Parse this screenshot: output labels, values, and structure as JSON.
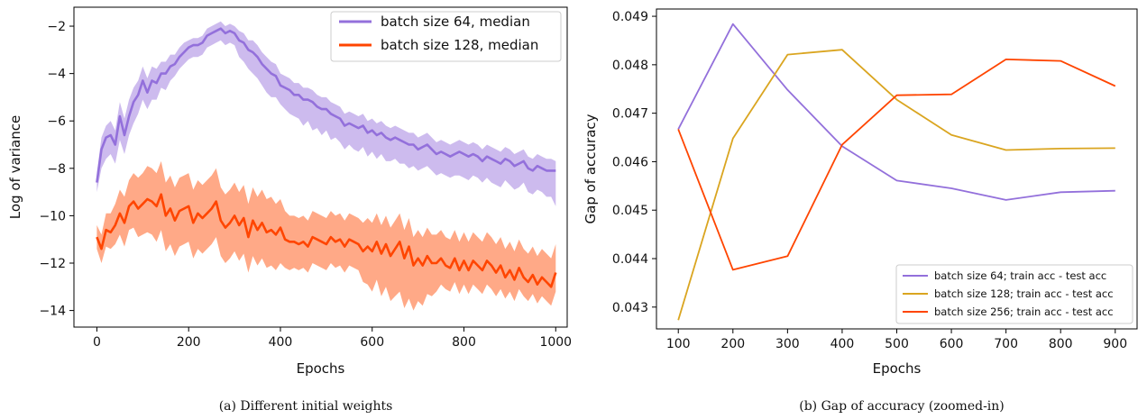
{
  "chart_data": [
    {
      "type": "line",
      "caption": "(a) Different initial weights",
      "xlabel": "Epochs",
      "ylabel": "Log of variance",
      "xlim": [
        -50,
        1025
      ],
      "ylim": [
        -14.7,
        -1.2
      ],
      "xticks": [
        0,
        200,
        400,
        600,
        800,
        1000
      ],
      "yticks": [
        -14,
        -12,
        -10,
        -8,
        -6,
        -4,
        -2
      ],
      "legend_position": "top-right",
      "x": [
        0,
        10,
        20,
        30,
        40,
        50,
        60,
        70,
        80,
        90,
        100,
        110,
        120,
        130,
        140,
        150,
        160,
        170,
        180,
        190,
        200,
        210,
        220,
        230,
        240,
        250,
        260,
        270,
        280,
        290,
        300,
        310,
        320,
        330,
        340,
        350,
        360,
        370,
        380,
        390,
        400,
        410,
        420,
        430,
        440,
        450,
        460,
        470,
        480,
        490,
        500,
        510,
        520,
        530,
        540,
        550,
        560,
        570,
        580,
        590,
        600,
        610,
        620,
        630,
        640,
        650,
        660,
        670,
        680,
        690,
        700,
        710,
        720,
        730,
        740,
        750,
        760,
        770,
        780,
        790,
        800,
        810,
        820,
        830,
        840,
        850,
        860,
        870,
        880,
        890,
        900,
        910,
        920,
        930,
        940,
        950,
        960,
        970,
        980,
        990,
        1000
      ],
      "series": [
        {
          "name": "batch size 64, median",
          "color": "#9370DB",
          "band_color": "#C8B4EC",
          "values": [
            -8.6,
            -7.2,
            -6.7,
            -6.6,
            -7.0,
            -5.8,
            -6.6,
            -5.8,
            -5.2,
            -4.9,
            -4.3,
            -4.8,
            -4.3,
            -4.4,
            -4.0,
            -4.0,
            -3.7,
            -3.6,
            -3.3,
            -3.1,
            -2.9,
            -2.8,
            -2.8,
            -2.7,
            -2.4,
            -2.3,
            -2.2,
            -2.1,
            -2.3,
            -2.2,
            -2.3,
            -2.6,
            -2.7,
            -3.0,
            -3.1,
            -3.3,
            -3.6,
            -3.8,
            -4.0,
            -4.1,
            -4.5,
            -4.6,
            -4.7,
            -4.9,
            -4.9,
            -5.1,
            -5.1,
            -5.2,
            -5.4,
            -5.5,
            -5.5,
            -5.7,
            -5.8,
            -5.9,
            -6.2,
            -6.1,
            -6.2,
            -6.3,
            -6.2,
            -6.5,
            -6.4,
            -6.6,
            -6.5,
            -6.7,
            -6.8,
            -6.7,
            -6.8,
            -6.9,
            -7.0,
            -7.0,
            -7.2,
            -7.1,
            -7.0,
            -7.2,
            -7.4,
            -7.3,
            -7.4,
            -7.5,
            -7.4,
            -7.3,
            -7.4,
            -7.5,
            -7.4,
            -7.5,
            -7.7,
            -7.5,
            -7.6,
            -7.7,
            -7.8,
            -7.6,
            -7.7,
            -7.9,
            -7.8,
            -7.7,
            -8.0,
            -8.1,
            -7.9,
            -8.0,
            -8.1,
            -8.1,
            -8.1
          ],
          "band_low": [
            -9.0,
            -8.0,
            -7.6,
            -7.4,
            -7.8,
            -6.8,
            -7.4,
            -6.6,
            -6.1,
            -5.7,
            -5.1,
            -5.5,
            -5.1,
            -5.1,
            -4.6,
            -4.7,
            -4.3,
            -4.1,
            -3.8,
            -3.6,
            -3.4,
            -3.3,
            -3.3,
            -3.2,
            -2.9,
            -2.8,
            -2.7,
            -2.6,
            -2.8,
            -2.7,
            -2.8,
            -3.3,
            -3.5,
            -3.8,
            -4.0,
            -4.2,
            -4.5,
            -4.8,
            -5.0,
            -5.0,
            -5.3,
            -5.5,
            -5.7,
            -5.8,
            -5.9,
            -6.2,
            -6.0,
            -6.4,
            -6.3,
            -6.6,
            -6.4,
            -6.8,
            -6.7,
            -6.9,
            -7.2,
            -7.0,
            -7.2,
            -7.3,
            -7.1,
            -7.5,
            -7.3,
            -7.6,
            -7.4,
            -7.7,
            -7.7,
            -7.6,
            -7.8,
            -7.8,
            -8.0,
            -7.9,
            -8.1,
            -8.0,
            -7.9,
            -8.1,
            -8.3,
            -8.2,
            -8.3,
            -8.4,
            -8.3,
            -8.3,
            -8.4,
            -8.5,
            -8.3,
            -8.4,
            -8.6,
            -8.4,
            -8.6,
            -8.7,
            -8.8,
            -8.5,
            -8.7,
            -8.9,
            -8.8,
            -8.6,
            -9.0,
            -9.1,
            -8.9,
            -9.0,
            -9.2,
            -9.2,
            -9.6
          ],
          "band_high": [
            -8.2,
            -6.7,
            -6.2,
            -6.0,
            -6.4,
            -5.2,
            -5.9,
            -5.1,
            -4.6,
            -4.3,
            -3.7,
            -4.2,
            -3.7,
            -3.8,
            -3.5,
            -3.5,
            -3.2,
            -3.2,
            -2.9,
            -2.7,
            -2.6,
            -2.5,
            -2.5,
            -2.4,
            -2.1,
            -2.0,
            -1.9,
            -1.8,
            -2.0,
            -1.9,
            -2.0,
            -2.2,
            -2.3,
            -2.6,
            -2.6,
            -2.8,
            -3.1,
            -3.3,
            -3.5,
            -3.6,
            -4.0,
            -4.1,
            -4.2,
            -4.4,
            -4.4,
            -4.6,
            -4.6,
            -4.7,
            -4.9,
            -5.0,
            -5.0,
            -5.2,
            -5.3,
            -5.4,
            -5.7,
            -5.6,
            -5.7,
            -5.8,
            -5.7,
            -6.0,
            -5.9,
            -6.1,
            -6.0,
            -6.2,
            -6.3,
            -6.2,
            -6.3,
            -6.4,
            -6.5,
            -6.5,
            -6.7,
            -6.6,
            -6.5,
            -6.7,
            -6.9,
            -6.8,
            -6.9,
            -7.0,
            -6.9,
            -6.8,
            -6.9,
            -7.0,
            -6.9,
            -7.0,
            -7.2,
            -7.0,
            -7.1,
            -7.2,
            -7.3,
            -7.1,
            -7.2,
            -7.4,
            -7.3,
            -7.2,
            -7.5,
            -7.6,
            -7.4,
            -7.5,
            -7.6,
            -7.6,
            -7.7
          ]
        },
        {
          "name": "batch size 128, median",
          "color": "#FF4500",
          "band_color": "#FFA07A",
          "values": [
            -10.9,
            -11.4,
            -10.6,
            -10.7,
            -10.4,
            -9.9,
            -10.3,
            -9.6,
            -9.4,
            -9.7,
            -9.5,
            -9.3,
            -9.4,
            -9.6,
            -9.1,
            -10.0,
            -9.7,
            -10.2,
            -9.8,
            -9.7,
            -9.6,
            -10.3,
            -9.9,
            -10.1,
            -9.9,
            -9.7,
            -9.4,
            -10.2,
            -10.5,
            -10.3,
            -10.0,
            -10.4,
            -10.1,
            -10.9,
            -10.2,
            -10.6,
            -10.3,
            -10.7,
            -10.6,
            -10.8,
            -10.5,
            -11.0,
            -11.1,
            -11.1,
            -11.2,
            -11.1,
            -11.3,
            -10.9,
            -11.0,
            -11.1,
            -11.2,
            -10.9,
            -11.1,
            -11.0,
            -11.3,
            -11.0,
            -11.1,
            -11.2,
            -11.5,
            -11.3,
            -11.5,
            -11.1,
            -11.6,
            -11.2,
            -11.7,
            -11.4,
            -11.1,
            -11.8,
            -11.3,
            -12.1,
            -11.8,
            -12.1,
            -11.7,
            -12.0,
            -12.0,
            -11.8,
            -12.1,
            -12.2,
            -11.8,
            -12.3,
            -11.9,
            -12.3,
            -11.9,
            -12.1,
            -12.3,
            -11.9,
            -12.1,
            -12.4,
            -12.1,
            -12.6,
            -12.3,
            -12.7,
            -12.2,
            -12.6,
            -12.8,
            -12.5,
            -12.9,
            -12.6,
            -12.8,
            -13.0,
            -12.4
          ],
          "band_low": [
            -11.4,
            -12.0,
            -11.3,
            -11.4,
            -11.2,
            -10.8,
            -11.3,
            -10.6,
            -10.5,
            -10.9,
            -10.8,
            -10.7,
            -10.8,
            -11.1,
            -10.6,
            -11.5,
            -11.2,
            -11.7,
            -11.3,
            -11.2,
            -11.1,
            -11.8,
            -11.4,
            -11.6,
            -11.4,
            -11.2,
            -10.9,
            -11.7,
            -12.0,
            -11.8,
            -11.5,
            -11.9,
            -11.6,
            -12.4,
            -11.7,
            -12.1,
            -11.8,
            -12.2,
            -12.1,
            -12.3,
            -12.0,
            -12.2,
            -12.3,
            -12.2,
            -12.3,
            -12.2,
            -12.4,
            -12.0,
            -12.1,
            -12.2,
            -12.3,
            -12.0,
            -12.2,
            -12.1,
            -12.4,
            -12.1,
            -12.2,
            -12.3,
            -12.8,
            -12.9,
            -13.2,
            -12.7,
            -13.4,
            -13.0,
            -13.6,
            -13.4,
            -13.2,
            -13.9,
            -13.5,
            -14.0,
            -13.6,
            -13.8,
            -13.3,
            -13.4,
            -13.2,
            -12.9,
            -13.1,
            -13.2,
            -12.8,
            -13.3,
            -12.9,
            -13.3,
            -12.9,
            -13.1,
            -13.3,
            -12.9,
            -13.1,
            -13.4,
            -13.1,
            -13.5,
            -13.2,
            -13.6,
            -13.1,
            -13.4,
            -13.6,
            -13.3,
            -13.7,
            -13.4,
            -13.6,
            -13.8,
            -13.2
          ],
          "band_high": [
            -10.4,
            -10.8,
            -9.9,
            -9.9,
            -9.5,
            -8.9,
            -9.2,
            -8.5,
            -8.2,
            -8.4,
            -8.2,
            -7.9,
            -8.0,
            -8.2,
            -7.7,
            -8.6,
            -8.3,
            -8.8,
            -8.4,
            -8.3,
            -8.2,
            -8.9,
            -8.5,
            -8.7,
            -8.5,
            -8.3,
            -8.0,
            -8.8,
            -9.1,
            -8.9,
            -8.6,
            -9.0,
            -8.7,
            -9.5,
            -8.8,
            -9.2,
            -8.9,
            -9.3,
            -9.2,
            -9.5,
            -9.3,
            -9.8,
            -10.0,
            -10.0,
            -10.1,
            -10.0,
            -10.2,
            -9.8,
            -9.9,
            -10.0,
            -10.1,
            -9.8,
            -10.0,
            -9.9,
            -10.2,
            -9.9,
            -10.0,
            -10.1,
            -10.3,
            -10.1,
            -10.3,
            -9.9,
            -10.4,
            -10.0,
            -10.5,
            -10.2,
            -9.9,
            -10.6,
            -10.1,
            -10.9,
            -10.6,
            -10.9,
            -10.5,
            -10.8,
            -10.8,
            -10.6,
            -10.9,
            -11.0,
            -10.6,
            -11.1,
            -10.7,
            -11.1,
            -10.7,
            -10.9,
            -11.1,
            -10.7,
            -10.9,
            -11.2,
            -10.9,
            -11.4,
            -11.1,
            -11.5,
            -11.0,
            -11.4,
            -11.6,
            -11.3,
            -11.7,
            -11.4,
            -11.6,
            -11.8,
            -11.2
          ]
        }
      ]
    },
    {
      "type": "line",
      "caption": "(b) Gap of accuracy (zoomed-in)",
      "xlabel": "Epochs",
      "ylabel": "Gap of accuracy",
      "xlim": [
        60,
        940
      ],
      "ylim": [
        0.04255,
        0.04915
      ],
      "xticks": [
        100,
        200,
        300,
        400,
        500,
        600,
        700,
        800,
        900
      ],
      "yticks": [
        0.043,
        0.044,
        0.045,
        0.046,
        0.047,
        0.048,
        0.049
      ],
      "legend_position": "bottom-right",
      "x": [
        100,
        200,
        300,
        400,
        500,
        600,
        700,
        800,
        900
      ],
      "series": [
        {
          "name": "batch size 64; train acc - test acc",
          "color": "#9370DB",
          "values": [
            0.04667,
            0.04884,
            0.04748,
            0.04632,
            0.04561,
            0.04545,
            0.04521,
            0.04537,
            0.0454
          ]
        },
        {
          "name": "batch size 128; train acc - test acc",
          "color": "#DAA520",
          "values": [
            0.04273,
            0.04648,
            0.04821,
            0.04831,
            0.04728,
            0.04655,
            0.04624,
            0.04627,
            0.04628
          ]
        },
        {
          "name": "batch size 256; train acc - test acc",
          "color": "#FF4500",
          "values": [
            0.04667,
            0.04377,
            0.04405,
            0.04635,
            0.04737,
            0.04739,
            0.04811,
            0.04808,
            0.04756
          ]
        }
      ]
    }
  ]
}
